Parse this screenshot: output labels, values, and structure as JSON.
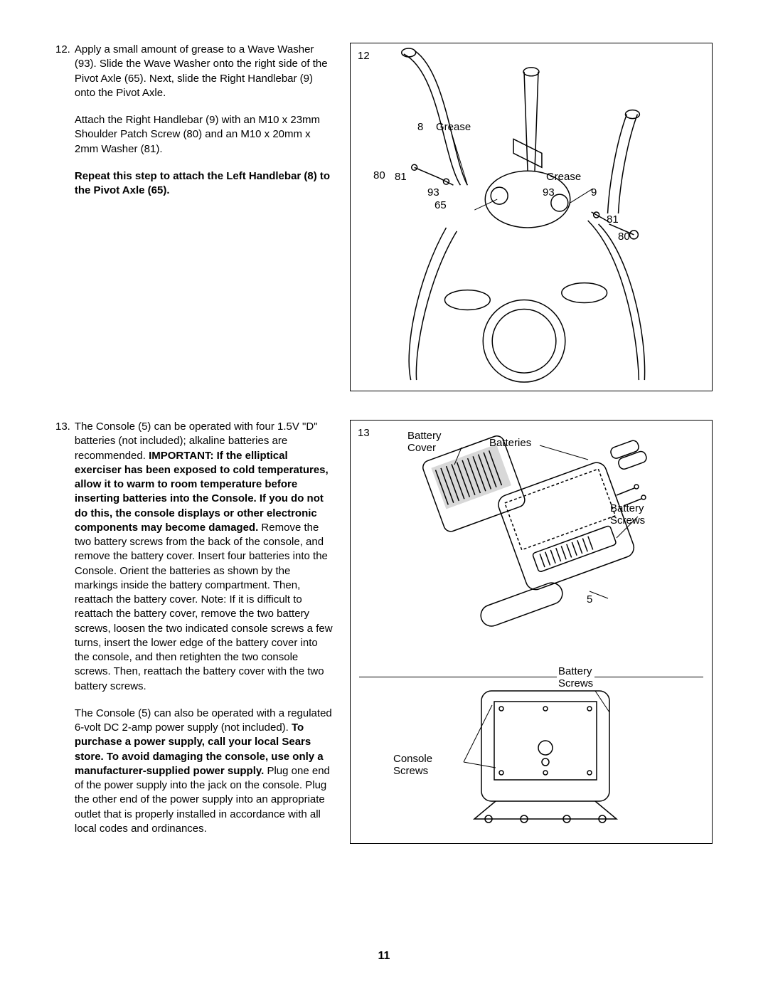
{
  "page_number": "11",
  "step12": {
    "number": "12.",
    "para1_a": "Apply a small amount of grease to a Wave Washer (93). Slide the Wave Washer onto the right side of the Pivot Axle (65). Next, slide the Right Handlebar (9) onto the Pivot Axle.",
    "para2_a": "Attach the Right Handlebar (9) with an M10 x 23mm Shoulder Patch Screw (80) and an M10 x 20mm x 2mm Washer (81).",
    "para3_bold": "Repeat this step to attach the Left Handlebar (8) to the Pivot Axle (65)."
  },
  "step13": {
    "number": "13.",
    "p1_a": "The Console (5) can be operated with four 1.5V \"D\" batteries (not included); alkaline batteries are recommended. ",
    "p1_b_bold": "IMPORTANT: If the elliptical exerciser has been exposed to cold temperatures, allow it to warm to room temperature before inserting batteries into the Console. If you do not do this, the console displays or other electronic components may become damaged.",
    "p1_c": " Remove the two battery screws from the back of the console, and remove the battery cover. Insert four batteries into the Console. Orient the batteries as shown by the markings inside the battery compartment. Then, reattach the battery cover. Note: If it is difficult to reattach the battery cover, remove the two battery screws, loosen the two indicated console screws a few turns, insert the lower edge of the battery cover into the console, and then retighten the two console screws. Then, reattach the battery cover with the two battery screws.",
    "p2_a": "The Console (5) can also be operated with a regulated 6-volt DC 2-amp power supply (not included). ",
    "p2_b_bold": "To purchase a power supply, call your local Sears store. To avoid damaging the console, use only a manufacturer-supplied power supply.",
    "p2_c": " Plug one end of the power supply into the jack on the console. Plug the other end of the power supply into an appropriate outlet that is properly installed in accordance with all local codes and ordinances."
  },
  "fig12": {
    "step_label": "12",
    "labels": {
      "l8": "8",
      "grease1": "Grease",
      "grease2": "Grease",
      "l80a": "80",
      "l81a": "81",
      "l93a": "93",
      "l65": "65",
      "l93b": "93",
      "l9": "9",
      "l81b": "81",
      "l80b": "80"
    }
  },
  "fig13": {
    "step_label": "13",
    "labels": {
      "battery_cover": "Battery Cover",
      "batteries": "Batteries",
      "battery_screws_1": "Battery Screws",
      "l5": "5",
      "battery_screws_2": "Battery Screws",
      "console_screws": "Console Screws"
    }
  }
}
